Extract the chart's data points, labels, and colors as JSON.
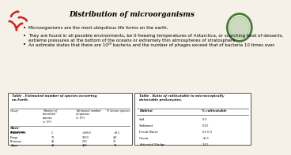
{
  "title": "Distribution of microorganisms",
  "bullets": [
    "Microorganisms are the most ubiquitous life forms on the earth.",
    "They are found in all possible environments, be it freezing temperatures of Antarctica, or scorching heat of desserts,\nextreme pressures at the bottom of the oceans or extremely thin atmospheres of stratosphere.",
    "An estimate states that there are 10²⁹ bacteria and the number of phages exceed that of bacteria 10 times over."
  ],
  "table1_title": "Table . Estimated number of species occurring\non Earth.",
  "table1_headers": [
    "Group",
    "Number of\ndescribed\nspecies\n(x 10³)",
    "Estimated number\nof species\n(x 10³)",
    "% known species"
  ],
  "table1_groups": [
    "Micro-\norganisms",
    "Prokaryotes",
    "Fungi",
    "Protozoa",
    "Algae"
  ],
  "table1_col2": [
    "",
    "5",
    "72",
    "40",
    "40"
  ],
  "table1_col3": [
    "",
    ">1000",
    "1500",
    "200",
    "400"
  ],
  "table1_col4": [
    "",
    "<0.5",
    "4.8",
    "20",
    "10"
  ],
  "table2_title": "Table . Ratio of cultivatable to microscopically\ndetectable prokaryotes.",
  "table2_col1": [
    "Habitat",
    "Soil",
    "Sediment",
    "Fresh Water",
    "Ocean",
    "Activated Sludge"
  ],
  "table2_col2": [
    "% cultivatable",
    "0.3",
    "0.25",
    "0.1-0.5",
    "<0.1",
    "3-15"
  ],
  "bg_color": "#f5f0e8",
  "table_bg": "#ffffff",
  "title_color": "#000000",
  "line_color": "#555555"
}
